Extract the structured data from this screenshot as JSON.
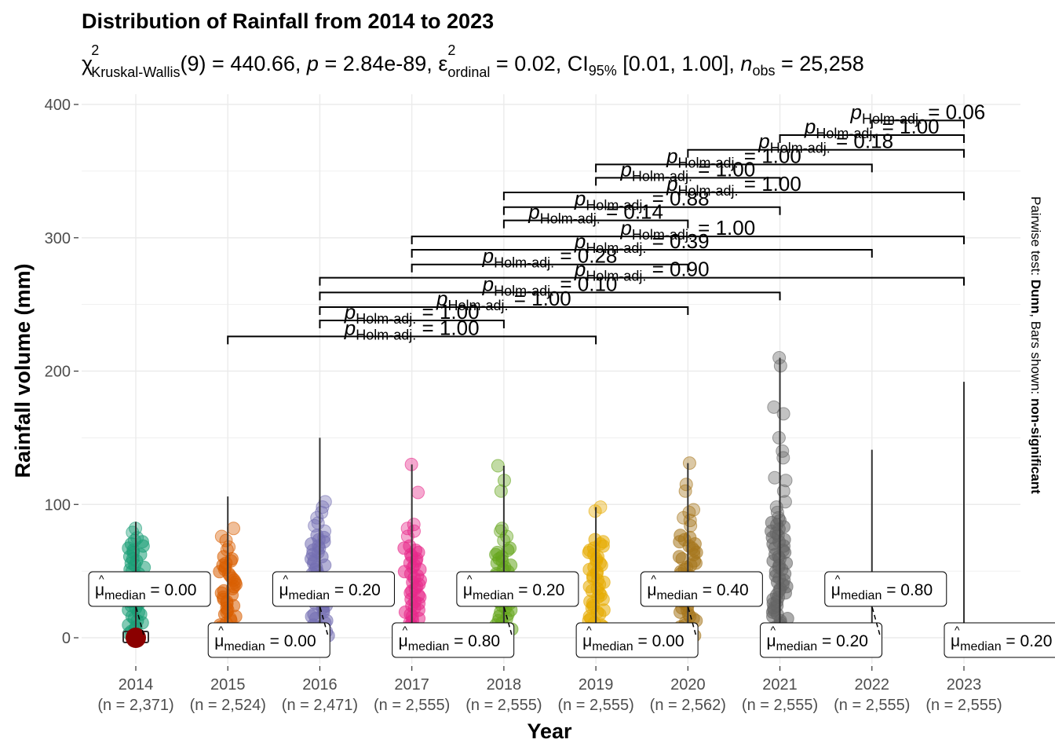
{
  "chart_data": {
    "type": "scatter",
    "title": "Distribution of Rainfall from 2014 to 2023",
    "subtitle": {
      "test_symbol": "χ",
      "test_sup": "2",
      "test_sub": "Kruskal-Wallis",
      "df_part": "(9) = 440.66, ",
      "p_symbol": "p",
      "p_part": " = 2.84e-89, ",
      "effect_symbol": "ε",
      "effect_sup": "2",
      "effect_sub": "ordinal",
      "effect_part": " = 0.02, CI",
      "ci_sub": "95%",
      "ci_part": " [0.01, 1.00], ",
      "n_symbol": "n",
      "n_sub": "obs",
      "n_part": " = 25,258"
    },
    "xlabel": "Year",
    "ylabel": "Rainfall volume (mm)",
    "ylim": [
      -20,
      410
    ],
    "yticks": [
      0,
      100,
      200,
      300,
      400
    ],
    "grid": true,
    "caption": {
      "prefix": "Pairwise test: ",
      "test": "Dunn",
      "middle": ", Bars shown: ",
      "shown": "non-significant"
    },
    "categories": [
      "2014",
      "2015",
      "2016",
      "2017",
      "2018",
      "2019",
      "2020",
      "2021",
      "2022",
      "2023"
    ],
    "n_labels": [
      "(n = 2,371)",
      "(n = 2,524)",
      "(n = 2,471)",
      "(n = 2,555)",
      "(n = 2,555)",
      "(n = 2,555)",
      "(n = 2,562)",
      "(n = 2,555)",
      "(n = 2,555)",
      "(n = 2,555)"
    ],
    "colors": [
      "#1B9E77",
      "#D95F02",
      "#7570B3",
      "#E7298A",
      "#66A61E",
      "#E6AB02",
      "#A6761D",
      "#666666",
      "#666666",
      "#666666"
    ],
    "max_values": [
      87,
      106,
      150,
      130,
      129,
      98,
      131,
      210,
      141,
      192
    ],
    "dense_top": [
      72,
      62,
      78,
      70,
      68,
      74,
      78,
      88,
      0,
      0
    ],
    "outliers": [
      [
        82,
        79,
        75,
        73
      ],
      [
        82,
        76,
        73,
        68,
        66
      ],
      [
        102,
        98,
        94,
        90,
        86,
        84,
        80
      ],
      [
        130,
        109,
        85,
        82,
        80,
        76
      ],
      [
        129,
        118,
        110,
        82,
        80,
        76,
        73
      ],
      [
        98,
        95
      ],
      [
        131,
        115,
        110,
        96,
        94,
        90,
        88,
        84
      ],
      [
        210,
        204,
        173,
        168,
        150,
        140,
        135,
        120,
        118,
        110,
        102,
        98,
        94,
        90
      ],
      [],
      []
    ],
    "medians": [
      "0.00",
      "0.00",
      "0.20",
      "0.80",
      "0.20",
      "0.00",
      "0.40",
      "0.20",
      "0.80",
      "0.20"
    ],
    "median_label": {
      "symbol": "μ",
      "sub": "median",
      "eq": " = "
    },
    "mean_point": {
      "category": "2014",
      "value": 0,
      "color": "#8B0000"
    },
    "pairwise_label": {
      "symbol": "p",
      "sub": "Holm-adj.",
      "eq": " = "
    },
    "pairwise": [
      {
        "from": "2015",
        "to": "2019",
        "y": 226,
        "p": "1.00"
      },
      {
        "from": "2016",
        "to": "2018",
        "y": 238,
        "p": "1.00"
      },
      {
        "from": "2016",
        "to": "2020",
        "y": 248,
        "p": "1.00"
      },
      {
        "from": "2016",
        "to": "2021",
        "y": 259,
        "p": "0.10"
      },
      {
        "from": "2016",
        "to": "2023",
        "y": 270,
        "p": "0.90"
      },
      {
        "from": "2017",
        "to": "2020",
        "y": 280,
        "p": "0.28"
      },
      {
        "from": "2017",
        "to": "2022",
        "y": 291,
        "p": "0.39"
      },
      {
        "from": "2017",
        "to": "2023",
        "y": 301,
        "p": "1.00"
      },
      {
        "from": "2018",
        "to": "2020",
        "y": 313,
        "p": "0.14"
      },
      {
        "from": "2018",
        "to": "2021",
        "y": 323,
        "p": "0.88"
      },
      {
        "from": "2018",
        "to": "2023",
        "y": 334,
        "p": "1.00"
      },
      {
        "from": "2019",
        "to": "2021",
        "y": 345,
        "p": "1.00"
      },
      {
        "from": "2019",
        "to": "2022",
        "y": 355,
        "p": "1.00"
      },
      {
        "from": "2020",
        "to": "2023",
        "y": 366,
        "p": "0.18"
      },
      {
        "from": "2021",
        "to": "2023",
        "y": 377,
        "p": "1.00"
      },
      {
        "from": "2022",
        "to": "2023",
        "y": 388,
        "p": "0.06"
      }
    ]
  }
}
